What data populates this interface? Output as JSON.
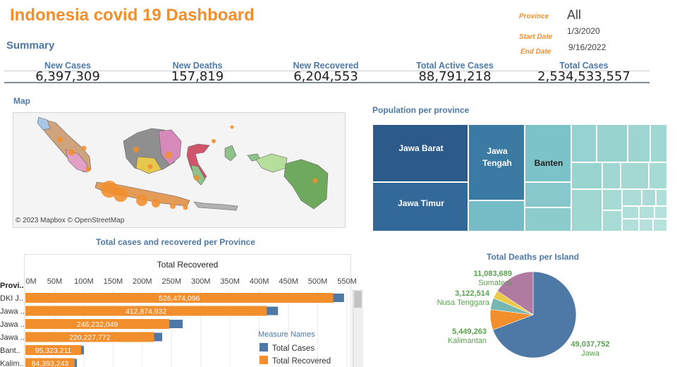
{
  "header": {
    "title": "Indonesia covid 19 Dashboard",
    "summary_label": "Summary"
  },
  "filters": {
    "province_label": "Province",
    "province_value": "All",
    "start_label": "Start Date",
    "start_value": "1/3/2020",
    "end_label": "End Date",
    "end_value": "9/16/2022"
  },
  "kpis": [
    {
      "label": "New Cases",
      "value": "6,397,309"
    },
    {
      "label": "New Deaths",
      "value": "157,819"
    },
    {
      "label": "New Recovered",
      "value": "6,204,553"
    },
    {
      "label": "Total Active Cases",
      "value": "88,791,218"
    },
    {
      "label": "Total Cases",
      "value": "2,534,533,557"
    }
  ],
  "map": {
    "title": "Map",
    "copyright": "© 2023 Mapbox © OpenStreetMap"
  },
  "treemap": {
    "title": "Population per province",
    "labels": {
      "jawa_barat": "Jawa Barat",
      "jawa_timur": "Jawa Timur",
      "jawa_tengah_1": "Jawa",
      "jawa_tengah_2": "Tengah",
      "banten": "Banten"
    },
    "colors": {
      "dark": "#2c5a8a",
      "mid": "#3472a3",
      "teal": "#76bcc6",
      "light": "#9fd6d3"
    }
  },
  "chart_data": [
    {
      "type": "bar",
      "title": "Total cases and recovered per Province",
      "axis_title": "Total Recovered",
      "row_header": "Provi..",
      "ticks": [
        "0M",
        "50M",
        "100M",
        "150M",
        "200M",
        "250M",
        "300M",
        "350M",
        "400M",
        "450M",
        "500M",
        "550M"
      ],
      "xlim": [
        0,
        550
      ],
      "categories": [
        "DKI J..",
        "Jawa ..",
        "Jawa ..",
        "Jawa ..",
        "Bant..",
        "Kalim.."
      ],
      "series": [
        {
          "name": "Total Cases",
          "color": "#4e79a7",
          "values": [
            545,
            432,
            269,
            234,
            100,
            88
          ]
        },
        {
          "name": "Total Recovered",
          "color": "#f28e2b",
          "values": [
            526.474096,
            412.874932,
            246.232049,
            220.227772,
            95.323211,
            84.393243
          ]
        }
      ],
      "value_labels": [
        "526,474,096",
        "412,874,932",
        "246,232,049",
        "220,227,772",
        "95,323,211",
        "84,393,243"
      ],
      "legend_title": "Measure Names",
      "legend": [
        "Total Cases",
        "Total Recovered"
      ]
    },
    {
      "type": "pie",
      "title": "Total Deaths per Island",
      "slices": [
        {
          "label": "Jawa",
          "value": 49037752,
          "display": "49,037,752",
          "color": "#4e79a7"
        },
        {
          "label": "Kalimantan",
          "value": 5449263,
          "display": "5,449,263",
          "color": "#f28e2b"
        },
        {
          "label": "Nusa Tenggara",
          "value": 3122514,
          "display": "3,122,514",
          "color": "#76b7b2"
        },
        {
          "label": "",
          "value": 2100000,
          "display": "",
          "color": "#edc948"
        },
        {
          "label": "Sumatera",
          "value": 11083689,
          "display": "11,083,689",
          "color": "#b07aa1"
        }
      ]
    }
  ]
}
